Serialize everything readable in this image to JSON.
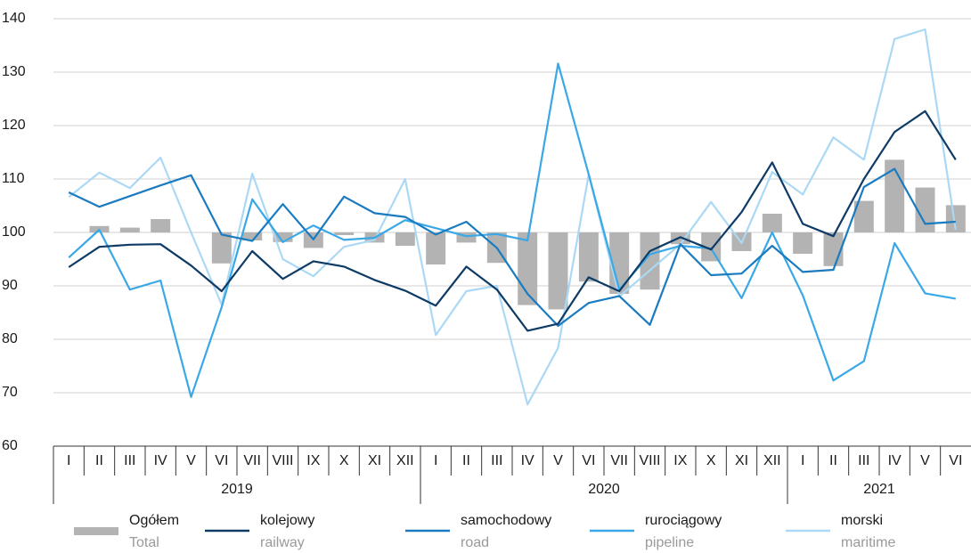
{
  "chart_data": {
    "type": "bar_line",
    "categories": [
      "I",
      "II",
      "III",
      "IV",
      "V",
      "VI",
      "VII",
      "VIII",
      "IX",
      "X",
      "XI",
      "XII",
      "I",
      "II",
      "III",
      "IV",
      "V",
      "VI",
      "VII",
      "VIII",
      "IX",
      "X",
      "XI",
      "XII",
      "I",
      "II",
      "III",
      "IV",
      "V",
      "VI"
    ],
    "x_groups": [
      {
        "label": "2019",
        "size": 12
      },
      {
        "label": "2020",
        "size": 12
      },
      {
        "label": "2021",
        "size": 6
      }
    ],
    "ylim": [
      60,
      140
    ],
    "yticks": [
      60,
      70,
      80,
      90,
      100,
      110,
      120,
      130,
      140
    ],
    "grid": true,
    "bar_base": 100,
    "series": [
      {
        "name": "Ogółem",
        "name_en": "Total",
        "type": "bar",
        "color": "#b3b3b3",
        "values": [
          100,
          101.2,
          100.9,
          102.5,
          100,
          94.2,
          98.5,
          98.2,
          97.1,
          99.5,
          98.1,
          97.5,
          94.0,
          98.1,
          94.3,
          86.4,
          85.6,
          90.8,
          88.5,
          89.3,
          97.8,
          94.6,
          96.5,
          103.5,
          96.0,
          93.7,
          105.9,
          113.6,
          108.4,
          105.1
        ]
      },
      {
        "name": "kolejowy",
        "name_en": "railway",
        "type": "line",
        "color": "#0d3b66",
        "values": [
          93.5,
          97.3,
          97.7,
          97.8,
          93.8,
          89.0,
          96.5,
          91.3,
          94.6,
          93.6,
          91.1,
          89.1,
          86.3,
          93.6,
          89.3,
          81.6,
          82.9,
          91.6,
          89.0,
          96.5,
          99.1,
          96.8,
          103.8,
          113.1,
          101.6,
          99.3,
          110.0,
          118.8,
          122.7,
          113.6
        ]
      },
      {
        "name": "samochodowy",
        "name_en": "road",
        "type": "line",
        "color": "#1a7bc0",
        "values": [
          107.5,
          104.8,
          106.8,
          108.8,
          110.7,
          99.6,
          98.4,
          105.3,
          98.7,
          106.7,
          103.6,
          102.9,
          99.6,
          102.0,
          97.1,
          88.5,
          82.5,
          86.8,
          88.1,
          82.7,
          97.8,
          92.0,
          92.3,
          97.5,
          92.6,
          93.0,
          108.5,
          111.9,
          101.6,
          102.0
        ]
      },
      {
        "name": "rurociągowy",
        "name_en": "pipeline",
        "type": "line",
        "color": "#3aa8e6",
        "values": [
          95.3,
          100.5,
          89.3,
          91.0,
          69.2,
          86.0,
          106.2,
          98.2,
          101.3,
          98.6,
          99.0,
          102.3,
          100.8,
          99.3,
          99.7,
          98.5,
          131.6,
          110.9,
          89.3,
          95.9,
          97.5,
          97.0,
          87.7,
          100.0,
          88.2,
          72.3,
          75.9,
          98.0,
          88.6,
          87.6
        ]
      },
      {
        "name": "morski",
        "name_en": "maritime",
        "type": "line",
        "color": "#abd9f5",
        "values": [
          106.6,
          111.2,
          108.3,
          114.0,
          100.0,
          86.5,
          111.0,
          95.0,
          91.8,
          97.3,
          98.6,
          110.0,
          80.8,
          89.0,
          90.0,
          67.8,
          78.4,
          110.8,
          88.0,
          92.9,
          97.8,
          105.7,
          98.0,
          111.3,
          107.1,
          117.8,
          113.6,
          136.2,
          138.0,
          100.5
        ]
      }
    ]
  }
}
